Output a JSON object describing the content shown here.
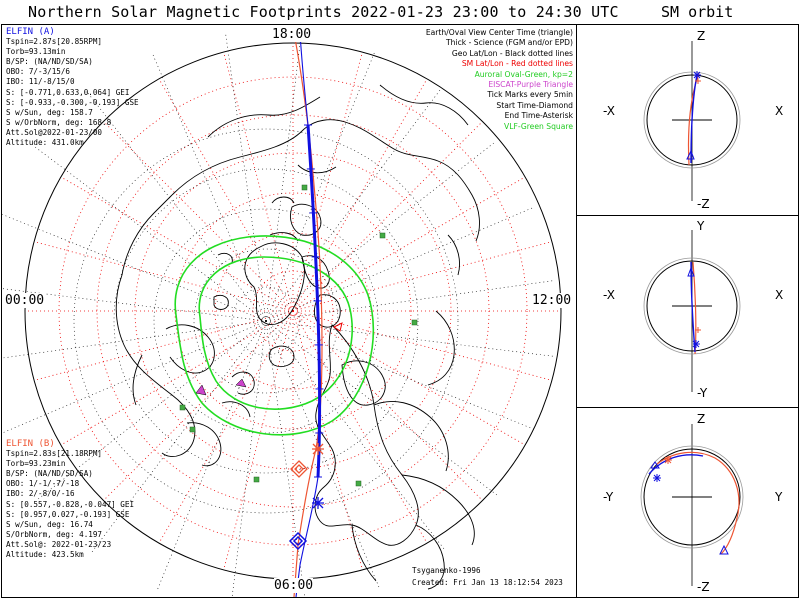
{
  "header": {
    "title": "Northern Solar Magnetic Footprints 2022-01-23 23:00 to 24:30 UTC",
    "orbit_title": "SM orbit"
  },
  "clock_labels": {
    "top": "18:00",
    "left": "00:00",
    "right": "12:00",
    "bottom": "06:00"
  },
  "elfin_a": {
    "name": "ELFIN (A)",
    "color": "#1010e0",
    "lines": [
      "Tspin=2.87s[20.85RPM]",
      "Torb=93.13min",
      "B/SP: (NA/ND/SD/SA)",
      "OBO: 7/-3/15/6",
      "IBO: 11/-8/15/0",
      "S: [-0.771,0.633,0.064] GEI",
      "S: [-0.933,-0.300,-0.193] GSE",
      "S w/Sun, deg: 158.7",
      "S w/OrbNorm, deg: 168.8",
      "Att.Sol@2022-01-23/00",
      "Altitude: 431.0km"
    ]
  },
  "elfin_b": {
    "name": "ELFIN (B)",
    "color": "#ee5533",
    "lines": [
      "Tspin=2.83s[21.18RPM]",
      "Torb=93.23min",
      "B/SP: (NA/ND/SD/SA)",
      "OBO: 1/-1/-7/-18",
      "IBO: 2/-8/0/-16",
      "S: [0.557,-0.828,-0.047] GEI",
      "S: [0.957,0.027,-0.193] GSE",
      "S w/Sun, deg: 16.74",
      "S/OrbNorm, deg: 4.197",
      "Att.Sol@: 2022-01-23/23",
      "Altitude: 423.5km"
    ]
  },
  "legend": [
    {
      "text": "Earth/Oval View Center Time (triangle)",
      "color": "#000000"
    },
    {
      "text": "Thick - Science (FGM and/or EPD)",
      "color": "#000000"
    },
    {
      "text": "Geo Lat/Lon - Black dotted lines",
      "color": "#000000"
    },
    {
      "text": "SM Lat/Lon - Red dotted lines",
      "color": "#ee0000"
    },
    {
      "text": "Auroral Oval-Green, kp=2",
      "color": "#22cc22"
    },
    {
      "text": "EISCAT-Purple Triangle",
      "color": "#cc44cc"
    },
    {
      "text": "Tick Marks every 5min",
      "color": "#000000"
    },
    {
      "text": "Start Time-Diamond",
      "color": "#000000"
    },
    {
      "text": "End Time-Asterisk",
      "color": "#000000"
    },
    {
      "text": "VLF-Green Square",
      "color": "#22cc22"
    }
  ],
  "footer": {
    "model": "Tsyganenko-1996",
    "created": "Created: Fri Jan 13 18:12:54 2023"
  },
  "orbit_panels": [
    {
      "top": "Z",
      "bottom": "-Z",
      "left": "-X",
      "right": "X"
    },
    {
      "top": "Y",
      "bottom": "-Y",
      "left": "-X",
      "right": "X"
    },
    {
      "top": "Z",
      "bottom": "-Z",
      "left": "-Y",
      "right": "Y"
    }
  ]
}
